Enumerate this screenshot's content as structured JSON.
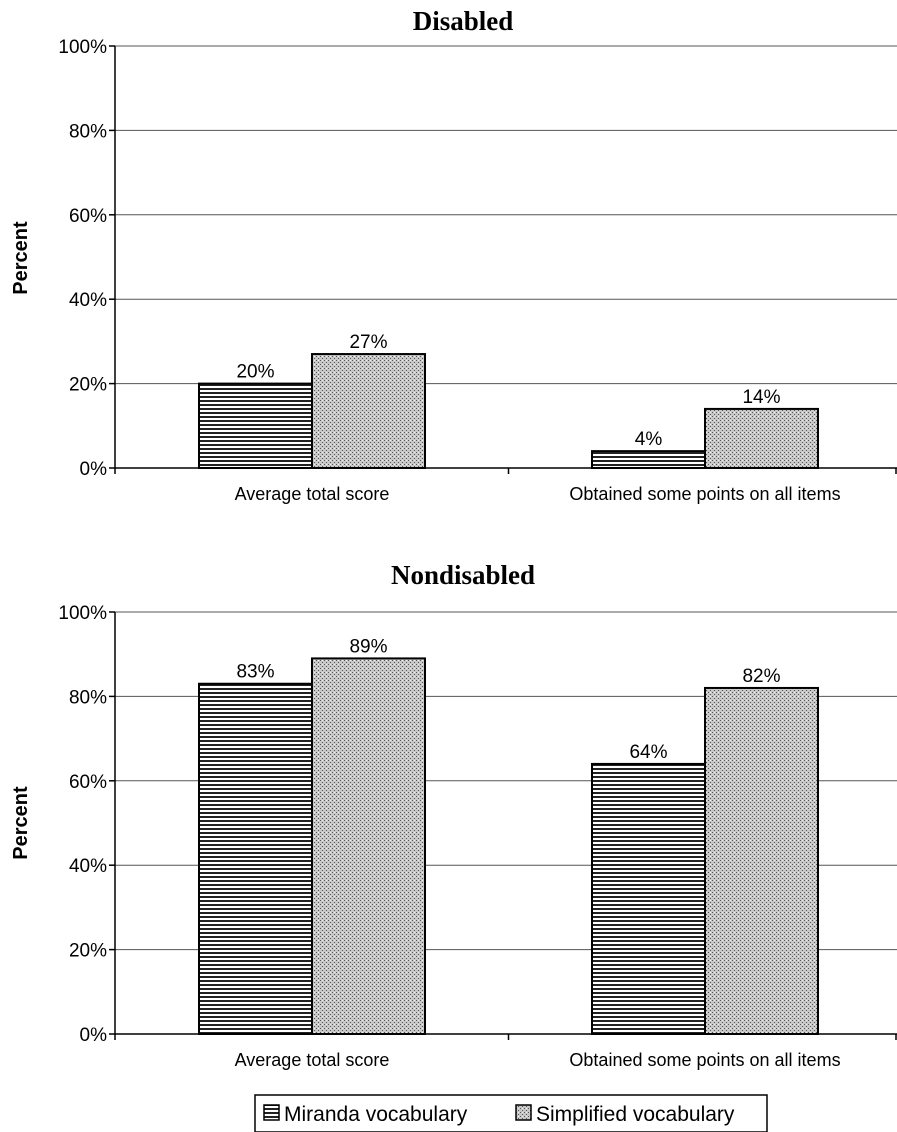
{
  "chart_data": [
    {
      "type": "bar",
      "title": "Disabled",
      "ylabel": "Percent",
      "xlabel": "",
      "ylim": [
        0,
        100
      ],
      "yticks": [
        "0%",
        "20%",
        "40%",
        "60%",
        "80%",
        "100%"
      ],
      "categories": [
        "Average total score",
        "Obtained some points on all items"
      ],
      "series": [
        {
          "name": "Miranda vocabulary",
          "values": [
            20,
            4
          ],
          "labels": [
            "20%",
            "4%"
          ]
        },
        {
          "name": "Simplified vocabulary",
          "values": [
            27,
            14
          ],
          "labels": [
            "27%",
            "14%"
          ]
        }
      ],
      "grid": true
    },
    {
      "type": "bar",
      "title": "Nondisabled",
      "ylabel": "Percent",
      "xlabel": "",
      "ylim": [
        0,
        100
      ],
      "yticks": [
        "0%",
        "20%",
        "40%",
        "60%",
        "80%",
        "100%"
      ],
      "categories": [
        "Average total score",
        "Obtained some points on all items"
      ],
      "series": [
        {
          "name": "Miranda vocabulary",
          "values": [
            83,
            64
          ],
          "labels": [
            "83%",
            "64%"
          ]
        },
        {
          "name": "Simplified vocabulary",
          "values": [
            89,
            82
          ],
          "labels": [
            "89%",
            "82%"
          ]
        }
      ],
      "grid": true
    }
  ],
  "legend": {
    "placement": "bottom",
    "items": [
      "Miranda vocabulary",
      "Simplified vocabulary"
    ]
  }
}
